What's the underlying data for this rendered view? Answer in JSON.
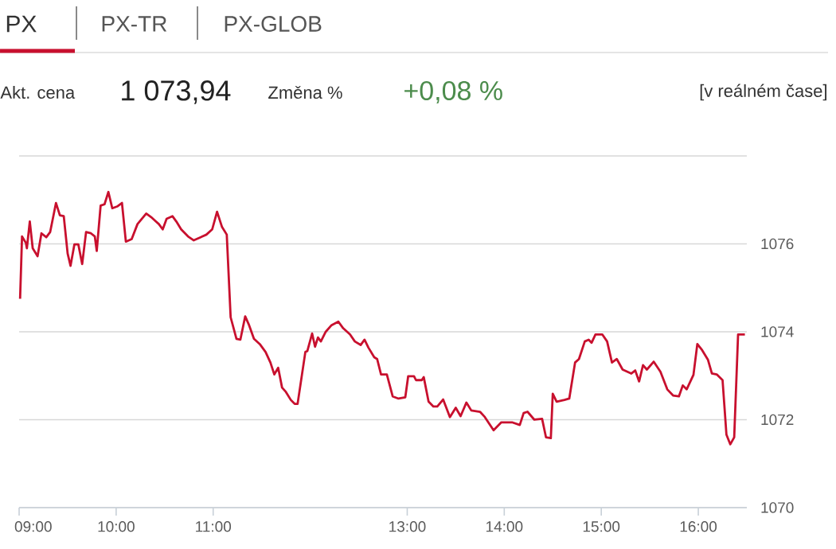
{
  "chart_data": {
    "type": "line",
    "annotations": [
      "PX",
      "PX-TR",
      "PX-GLOB",
      "Akt. cena",
      "1 073,94",
      "Změna %",
      "+0,08 %",
      "[v reálném čase]"
    ],
    "x": [
      9.01,
      9.03,
      9.07,
      9.08,
      9.11,
      9.14,
      9.19,
      9.23,
      9.28,
      9.32,
      9.38,
      9.42,
      9.46,
      9.5,
      9.53,
      9.57,
      9.61,
      9.65,
      9.69,
      9.74,
      9.78,
      9.8,
      9.84,
      9.88,
      9.92,
      9.96,
      10.01,
      10.06,
      10.1,
      10.16,
      10.22,
      10.31,
      10.36,
      10.4,
      10.44,
      10.48,
      10.52,
      10.58,
      10.62,
      10.67,
      10.74,
      10.8,
      10.87,
      10.93,
      10.99,
      11.04,
      11.09,
      11.14,
      11.18,
      11.24,
      11.28,
      11.33,
      11.37,
      11.42,
      11.48,
      11.54,
      11.59,
      11.63,
      11.67,
      11.71,
      11.75,
      11.8,
      11.84,
      11.87,
      11.95,
      11.97,
      12.02,
      12.05,
      12.08,
      12.11,
      12.16,
      12.22,
      12.29,
      12.34,
      12.41,
      12.46,
      12.52,
      12.56,
      12.6,
      12.66,
      12.69,
      12.73,
      12.79,
      12.85,
      12.91,
      12.98,
      13.01,
      13.07,
      13.09,
      13.15,
      13.17,
      13.22,
      13.27,
      13.31,
      13.37,
      13.44,
      13.5,
      13.55,
      13.61,
      13.66,
      13.75,
      13.8,
      13.89,
      13.97,
      14.08,
      14.16,
      14.2,
      14.24,
      14.31,
      14.39,
      14.43,
      14.48,
      14.5,
      14.54,
      14.62,
      14.67,
      14.73,
      14.77,
      14.83,
      14.87,
      14.9,
      14.94,
      15.01,
      15.06,
      15.11,
      15.16,
      15.22,
      15.31,
      15.35,
      15.39,
      15.43,
      15.47,
      15.54,
      15.61,
      15.68,
      15.74,
      15.8,
      15.84,
      15.88,
      15.95,
      15.99,
      16.04,
      16.1,
      16.14,
      16.19,
      16.25,
      16.29,
      16.33,
      16.37,
      16.41,
      16.48
    ],
    "series": [
      {
        "color": "#c8102e",
        "values": [
          1074.75,
          1076.17,
          1076.02,
          1075.9,
          1076.51,
          1075.9,
          1075.72,
          1076.24,
          1076.15,
          1076.27,
          1076.93,
          1076.65,
          1076.63,
          1075.78,
          1075.5,
          1075.99,
          1075.99,
          1075.54,
          1076.27,
          1076.24,
          1076.17,
          1075.84,
          1076.87,
          1076.9,
          1077.18,
          1076.81,
          1076.85,
          1076.93,
          1076.05,
          1076.11,
          1076.45,
          1076.69,
          1076.61,
          1076.53,
          1076.45,
          1076.33,
          1076.57,
          1076.63,
          1076.51,
          1076.33,
          1076.17,
          1076.08,
          1076.15,
          1076.21,
          1076.33,
          1076.73,
          1076.39,
          1076.21,
          1074.33,
          1073.84,
          1073.82,
          1074.35,
          1074.15,
          1073.84,
          1073.72,
          1073.54,
          1073.3,
          1073.03,
          1073.18,
          1072.73,
          1072.63,
          1072.45,
          1072.36,
          1072.36,
          1073.54,
          1073.56,
          1073.96,
          1073.66,
          1073.87,
          1073.78,
          1074.0,
          1074.15,
          1074.23,
          1074.08,
          1073.94,
          1073.78,
          1073.7,
          1073.82,
          1073.64,
          1073.42,
          1073.38,
          1073.03,
          1073.03,
          1072.53,
          1072.48,
          1072.51,
          1072.99,
          1072.99,
          1072.9,
          1072.9,
          1072.97,
          1072.41,
          1072.3,
          1072.3,
          1072.46,
          1072.06,
          1072.27,
          1072.08,
          1072.39,
          1072.21,
          1072.18,
          1072.06,
          1071.76,
          1071.94,
          1071.94,
          1071.88,
          1072.15,
          1072.18,
          1072.0,
          1072.02,
          1071.6,
          1071.58,
          1072.59,
          1072.41,
          1072.45,
          1072.48,
          1073.3,
          1073.38,
          1073.78,
          1073.82,
          1073.75,
          1073.94,
          1073.94,
          1073.78,
          1073.3,
          1073.38,
          1073.14,
          1073.05,
          1073.12,
          1072.87,
          1073.24,
          1073.14,
          1073.32,
          1073.09,
          1072.69,
          1072.55,
          1072.53,
          1072.78,
          1072.69,
          1073.02,
          1073.72,
          1073.58,
          1073.36,
          1073.05,
          1073.03,
          1072.9,
          1071.66,
          1071.44,
          1071.6,
          1073.94,
          1073.94
        ]
      }
    ],
    "xlim": [
      9,
      16.5
    ],
    "xticks": [
      {
        "value": 9,
        "label": "09:00"
      },
      {
        "value": 10,
        "label": "10:00"
      },
      {
        "value": 11,
        "label": "11:00"
      },
      {
        "value": 13,
        "label": "13:00"
      },
      {
        "value": 14,
        "label": "14:00"
      },
      {
        "value": 15,
        "label": "15:00"
      },
      {
        "value": 16,
        "label": "16:00"
      }
    ],
    "ylim": [
      1070,
      1078
    ],
    "yticks": [
      1070,
      1072,
      1074,
      1076,
      {
        "value": 1078,
        "label": null
      }
    ],
    "grid": "y",
    "marker": "none",
    "line_style": "solid"
  }
}
